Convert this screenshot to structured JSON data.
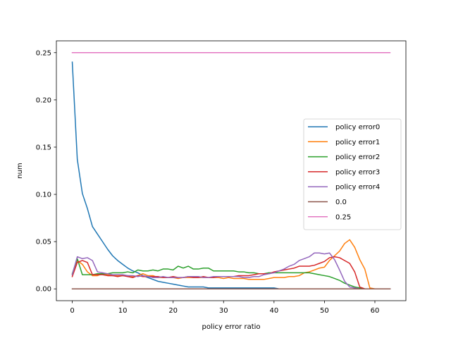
{
  "chart_data": {
    "type": "line",
    "xlabel": "policy error ratio",
    "ylabel": "num",
    "xlim": [
      -3.15,
      66.15
    ],
    "ylim": [
      -0.0125,
      0.2625
    ],
    "x_ticks": [
      0,
      10,
      20,
      30,
      40,
      50,
      60
    ],
    "y_ticks": [
      0.0,
      0.05,
      0.1,
      0.15,
      0.2,
      0.25
    ],
    "x_tick_labels": [
      "0",
      "10",
      "20",
      "30",
      "40",
      "50",
      "60"
    ],
    "y_tick_labels": [
      "0.00",
      "0.05",
      "0.10",
      "0.15",
      "0.20",
      "0.25"
    ],
    "grid": false,
    "legend_position": "center-right",
    "x": [
      0,
      1,
      2,
      3,
      4,
      5,
      6,
      7,
      8,
      9,
      10,
      11,
      12,
      13,
      14,
      15,
      16,
      17,
      18,
      19,
      20,
      21,
      22,
      23,
      24,
      25,
      26,
      27,
      28,
      29,
      30,
      31,
      32,
      33,
      34,
      35,
      36,
      37,
      38,
      39,
      40,
      41,
      42,
      43,
      44,
      45,
      46,
      47,
      48,
      49,
      50,
      51,
      52,
      53,
      54,
      55,
      56,
      57,
      58,
      59,
      60,
      61,
      62,
      63
    ],
    "series": [
      {
        "name": "policy error0",
        "color": "#1f77b4",
        "values": [
          0.24,
          0.137,
          0.101,
          0.085,
          0.066,
          0.058,
          0.05,
          0.042,
          0.035,
          0.03,
          0.026,
          0.022,
          0.019,
          0.017,
          0.014,
          0.012,
          0.01,
          0.008,
          0.007,
          0.006,
          0.005,
          0.004,
          0.003,
          0.002,
          0.002,
          0.002,
          0.002,
          0.001,
          0.001,
          0.001,
          0.001,
          0.001,
          0.001,
          0.001,
          0.001,
          0.001,
          0.001,
          0.001,
          0.001,
          0.001,
          0.001,
          0,
          0,
          0,
          0,
          0,
          0,
          0,
          0,
          0,
          0,
          0,
          0,
          0,
          0,
          0,
          0,
          0,
          0,
          0,
          0,
          0,
          0,
          0
        ]
      },
      {
        "name": "policy error1",
        "color": "#ff7f0e",
        "values": [
          0.015,
          0.03,
          0.026,
          0.018,
          0.014,
          0.014,
          0.016,
          0.015,
          0.014,
          0.014,
          0.014,
          0.014,
          0.013,
          0.014,
          0.016,
          0.014,
          0.014,
          0.012,
          0.012,
          0.012,
          0.012,
          0.011,
          0.012,
          0.012,
          0.012,
          0.012,
          0.012,
          0.012,
          0.012,
          0.012,
          0.011,
          0.012,
          0.011,
          0.011,
          0.011,
          0.01,
          0.01,
          0.01,
          0.01,
          0.011,
          0.012,
          0.012,
          0.012,
          0.013,
          0.013,
          0.014,
          0.017,
          0.018,
          0.02,
          0.022,
          0.023,
          0.03,
          0.035,
          0.04,
          0.048,
          0.052,
          0.044,
          0.031,
          0.021,
          0.001,
          0,
          0,
          0,
          0
        ]
      },
      {
        "name": "policy error2",
        "color": "#2ca02c",
        "values": [
          0.016,
          0.032,
          0.015,
          0.015,
          0.015,
          0.016,
          0.016,
          0.016,
          0.017,
          0.017,
          0.017,
          0.018,
          0.017,
          0.02,
          0.019,
          0.019,
          0.02,
          0.019,
          0.021,
          0.021,
          0.02,
          0.024,
          0.022,
          0.024,
          0.021,
          0.021,
          0.022,
          0.022,
          0.019,
          0.019,
          0.019,
          0.019,
          0.019,
          0.018,
          0.018,
          0.017,
          0.017,
          0.016,
          0.016,
          0.017,
          0.017,
          0.017,
          0.017,
          0.017,
          0.017,
          0.017,
          0.017,
          0.017,
          0.016,
          0.015,
          0.014,
          0.013,
          0.011,
          0.009,
          0.006,
          0.004,
          0.002,
          0.001,
          0,
          0,
          0,
          0,
          0,
          0
        ]
      },
      {
        "name": "policy error3",
        "color": "#d62728",
        "values": [
          0.013,
          0.028,
          0.03,
          0.028,
          0.015,
          0.015,
          0.015,
          0.014,
          0.014,
          0.013,
          0.014,
          0.013,
          0.012,
          0.014,
          0.013,
          0.013,
          0.013,
          0.013,
          0.012,
          0.012,
          0.013,
          0.012,
          0.012,
          0.013,
          0.012,
          0.012,
          0.013,
          0.012,
          0.012,
          0.013,
          0.013,
          0.013,
          0.013,
          0.014,
          0.014,
          0.014,
          0.015,
          0.016,
          0.016,
          0.016,
          0.018,
          0.019,
          0.02,
          0.021,
          0.022,
          0.024,
          0.024,
          0.024,
          0.025,
          0.027,
          0.029,
          0.033,
          0.034,
          0.033,
          0.03,
          0.027,
          0.018,
          0.002,
          0,
          0,
          0,
          0,
          0,
          0
        ]
      },
      {
        "name": "policy error4",
        "color": "#9467bd",
        "values": [
          0.015,
          0.034,
          0.032,
          0.033,
          0.03,
          0.018,
          0.017,
          0.016,
          0.015,
          0.015,
          0.015,
          0.014,
          0.014,
          0.013,
          0.014,
          0.013,
          0.012,
          0.012,
          0.013,
          0.012,
          0.012,
          0.012,
          0.012,
          0.013,
          0.013,
          0.013,
          0.012,
          0.012,
          0.013,
          0.013,
          0.013,
          0.013,
          0.013,
          0.013,
          0.012,
          0.012,
          0.013,
          0.013,
          0.015,
          0.016,
          0.017,
          0.019,
          0.021,
          0.024,
          0.026,
          0.03,
          0.032,
          0.034,
          0.038,
          0.038,
          0.037,
          0.038,
          0.031,
          0.02,
          0.008,
          0.002,
          0.001,
          0,
          0,
          0,
          0,
          0,
          0,
          0
        ]
      },
      {
        "name": "0.0",
        "color": "#8c564b",
        "values": [
          0,
          0,
          0,
          0,
          0,
          0,
          0,
          0,
          0,
          0,
          0,
          0,
          0,
          0,
          0,
          0,
          0,
          0,
          0,
          0,
          0,
          0,
          0,
          0,
          0,
          0,
          0,
          0,
          0,
          0,
          0,
          0,
          0,
          0,
          0,
          0,
          0,
          0,
          0,
          0,
          0,
          0,
          0,
          0,
          0,
          0,
          0,
          0,
          0,
          0,
          0,
          0,
          0,
          0,
          0,
          0,
          0,
          0,
          0,
          0,
          0,
          0,
          0,
          0
        ]
      },
      {
        "name": "0.25",
        "color": "#e377c2",
        "values": [
          0.25,
          0.25,
          0.25,
          0.25,
          0.25,
          0.25,
          0.25,
          0.25,
          0.25,
          0.25,
          0.25,
          0.25,
          0.25,
          0.25,
          0.25,
          0.25,
          0.25,
          0.25,
          0.25,
          0.25,
          0.25,
          0.25,
          0.25,
          0.25,
          0.25,
          0.25,
          0.25,
          0.25,
          0.25,
          0.25,
          0.25,
          0.25,
          0.25,
          0.25,
          0.25,
          0.25,
          0.25,
          0.25,
          0.25,
          0.25,
          0.25,
          0.25,
          0.25,
          0.25,
          0.25,
          0.25,
          0.25,
          0.25,
          0.25,
          0.25,
          0.25,
          0.25,
          0.25,
          0.25,
          0.25,
          0.25,
          0.25,
          0.25,
          0.25,
          0.25,
          0.25,
          0.25,
          0.25,
          0.25
        ]
      }
    ]
  }
}
